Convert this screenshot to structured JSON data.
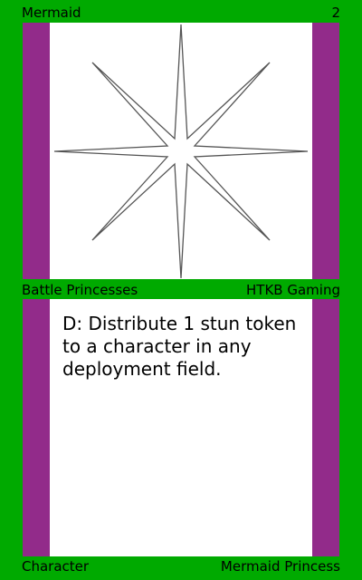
{
  "card": {
    "name": "Mermaid",
    "cost": "2",
    "set_name": "Battle Princesses",
    "publisher": "HTKB Gaming",
    "rules_text": "D: Distribute 1 stun token to a character in any deployment field.",
    "card_type": "Character",
    "subtype": "Mermaid Princess",
    "art_icon": "eight-point-star-icon"
  },
  "colors": {
    "border": "#00aa00",
    "stripe": "#922b8a",
    "panel": "#ffffff"
  }
}
